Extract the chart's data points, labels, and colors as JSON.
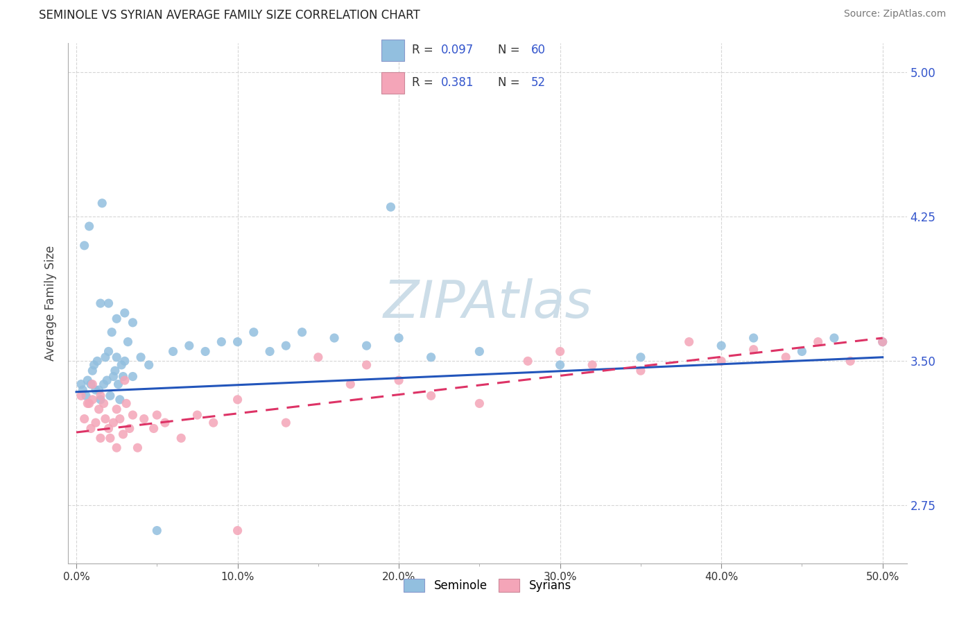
{
  "title": "SEMINOLE VS SYRIAN AVERAGE FAMILY SIZE CORRELATION CHART",
  "source": "Source: ZipAtlas.com",
  "ylabel": "Average Family Size",
  "ylim": [
    2.45,
    5.15
  ],
  "xlim": [
    -0.5,
    51.5
  ],
  "yticks": [
    2.75,
    3.5,
    4.25,
    5.0
  ],
  "xtick_vals": [
    0,
    10,
    20,
    30,
    40,
    50
  ],
  "seminole_color": "#92bfdf",
  "syrians_color": "#f4a5b8",
  "seminole_line_color": "#2255bb",
  "syrians_line_color": "#dd3366",
  "background_color": "#ffffff",
  "grid_color": "#cccccc",
  "watermark_color": "#ccdde8",
  "seminole_x": [
    0.3,
    0.4,
    0.5,
    0.6,
    0.7,
    0.8,
    0.9,
    1.0,
    1.1,
    1.2,
    1.3,
    1.4,
    1.5,
    1.6,
    1.7,
    1.8,
    1.9,
    2.0,
    2.1,
    2.2,
    2.3,
    2.4,
    2.5,
    2.6,
    2.7,
    2.8,
    2.9,
    3.0,
    3.2,
    3.5,
    4.0,
    4.5,
    5.0,
    6.0,
    7.0,
    8.0,
    9.0,
    10.0,
    11.0,
    12.0,
    13.0,
    14.0,
    16.0,
    18.0,
    19.5,
    20.0,
    22.0,
    25.0,
    30.0,
    35.0,
    40.0,
    42.0,
    45.0,
    47.0,
    50.0,
    2.0,
    3.0,
    1.5,
    3.5,
    2.5
  ],
  "seminole_y": [
    3.38,
    3.35,
    4.1,
    3.32,
    3.4,
    4.2,
    3.38,
    3.45,
    3.48,
    3.35,
    3.5,
    3.35,
    3.3,
    4.32,
    3.38,
    3.52,
    3.4,
    3.55,
    3.32,
    3.65,
    3.42,
    3.45,
    3.52,
    3.38,
    3.3,
    3.48,
    3.42,
    3.5,
    3.6,
    3.42,
    3.52,
    3.48,
    2.62,
    3.55,
    3.58,
    3.55,
    3.6,
    3.6,
    3.65,
    3.55,
    3.58,
    3.65,
    3.62,
    3.58,
    4.3,
    3.62,
    3.52,
    3.55,
    3.48,
    3.52,
    3.58,
    3.62,
    3.55,
    3.62,
    3.6,
    3.8,
    3.75,
    3.8,
    3.7,
    3.72
  ],
  "syrians_x": [
    0.3,
    0.5,
    0.7,
    0.9,
    1.0,
    1.2,
    1.4,
    1.5,
    1.7,
    1.8,
    2.0,
    2.1,
    2.3,
    2.5,
    2.7,
    2.9,
    3.1,
    3.3,
    3.5,
    3.8,
    4.2,
    4.8,
    5.5,
    6.5,
    7.5,
    8.5,
    10.0,
    13.0,
    15.0,
    17.0,
    18.0,
    20.0,
    22.0,
    25.0,
    28.0,
    30.0,
    32.0,
    35.0,
    38.0,
    40.0,
    42.0,
    44.0,
    46.0,
    48.0,
    50.0,
    1.0,
    1.5,
    2.5,
    3.0,
    0.8,
    5.0,
    10.0
  ],
  "syrians_y": [
    3.32,
    3.2,
    3.28,
    3.15,
    3.3,
    3.18,
    3.25,
    3.1,
    3.28,
    3.2,
    3.15,
    3.1,
    3.18,
    3.05,
    3.2,
    3.12,
    3.28,
    3.15,
    3.22,
    3.05,
    3.2,
    3.15,
    3.18,
    3.1,
    3.22,
    3.18,
    2.62,
    3.18,
    3.52,
    3.38,
    3.48,
    3.4,
    3.32,
    3.28,
    3.5,
    3.55,
    3.48,
    3.45,
    3.6,
    3.5,
    3.56,
    3.52,
    3.6,
    3.5,
    3.6,
    3.38,
    3.32,
    3.25,
    3.4,
    3.28,
    3.22,
    3.3
  ],
  "sem_line_x0": 0,
  "sem_line_x1": 50,
  "sem_line_y0": 3.34,
  "sem_line_y1": 3.52,
  "syr_line_x0": 0,
  "syr_line_x1": 50,
  "syr_line_y0": 3.13,
  "syr_line_y1": 3.62
}
